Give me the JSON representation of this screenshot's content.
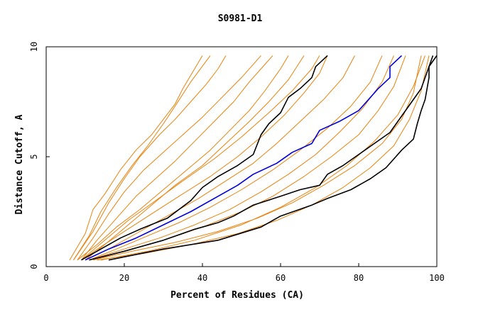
{
  "chart_data": {
    "type": "line",
    "title": "S0981-D1",
    "xlabel": "Percent of Residues (CA)",
    "ylabel": "Distance Cutoff, A",
    "xlim": [
      0,
      100
    ],
    "ylim": [
      0,
      10
    ],
    "x_ticks": [
      "0",
      "20",
      "40",
      "60",
      "80",
      "100"
    ],
    "y_ticks": [
      "0",
      "5",
      "10"
    ],
    "grid": false,
    "colors": {
      "orange": "#e8820c",
      "black": "#000000",
      "blue": "#0000dd"
    },
    "series": [
      {
        "color": "orange",
        "points": [
          [
            6,
            0.3
          ],
          [
            10,
            1.5
          ],
          [
            12,
            2.6
          ],
          [
            15,
            3.3
          ],
          [
            19,
            4.4
          ],
          [
            23,
            5.3
          ],
          [
            27,
            6.0
          ],
          [
            30,
            6.7
          ],
          [
            33,
            7.4
          ],
          [
            35,
            8.1
          ],
          [
            38,
            9.0
          ],
          [
            40,
            9.6
          ]
        ]
      },
      {
        "color": "orange",
        "points": [
          [
            7,
            0.3
          ],
          [
            11,
            1.4
          ],
          [
            14,
            2.5
          ],
          [
            18,
            3.6
          ],
          [
            22,
            4.6
          ],
          [
            26,
            5.5
          ],
          [
            30,
            6.5
          ],
          [
            33,
            7.3
          ],
          [
            37,
            8.4
          ],
          [
            42,
            9.6
          ]
        ]
      },
      {
        "color": "orange",
        "points": [
          [
            8,
            0.3
          ],
          [
            12,
            1.3
          ],
          [
            16,
            2.4
          ],
          [
            20,
            3.4
          ],
          [
            25,
            4.4
          ],
          [
            30,
            5.2
          ],
          [
            35,
            6.0
          ],
          [
            40,
            6.8
          ],
          [
            45,
            7.7
          ],
          [
            50,
            8.6
          ],
          [
            55,
            9.6
          ]
        ]
      },
      {
        "color": "orange",
        "points": [
          [
            9,
            0.3
          ],
          [
            13,
            1.2
          ],
          [
            18,
            2.2
          ],
          [
            23,
            3.2
          ],
          [
            28,
            4.0
          ],
          [
            33,
            4.8
          ],
          [
            38,
            5.7
          ],
          [
            43,
            6.6
          ],
          [
            48,
            7.5
          ],
          [
            52,
            8.4
          ],
          [
            55,
            9.0
          ],
          [
            58,
            9.6
          ]
        ]
      },
      {
        "color": "orange",
        "points": [
          [
            8,
            0.3
          ],
          [
            13,
            1.0
          ],
          [
            18,
            1.8
          ],
          [
            24,
            2.6
          ],
          [
            30,
            3.5
          ],
          [
            36,
            4.4
          ],
          [
            42,
            5.3
          ],
          [
            47,
            6.2
          ],
          [
            52,
            7.1
          ],
          [
            56,
            8.0
          ],
          [
            60,
            9.0
          ],
          [
            62,
            9.6
          ]
        ]
      },
      {
        "color": "orange",
        "points": [
          [
            10,
            0.3
          ],
          [
            15,
            1.0
          ],
          [
            21,
            1.9
          ],
          [
            27,
            2.8
          ],
          [
            33,
            3.7
          ],
          [
            40,
            4.6
          ],
          [
            46,
            5.6
          ],
          [
            52,
            6.6
          ],
          [
            57,
            7.5
          ],
          [
            62,
            8.5
          ],
          [
            66,
            9.6
          ]
        ]
      },
      {
        "color": "orange",
        "points": [
          [
            9,
            0.3
          ],
          [
            14,
            0.9
          ],
          [
            20,
            1.6
          ],
          [
            27,
            2.4
          ],
          [
            34,
            3.2
          ],
          [
            42,
            4.1
          ],
          [
            49,
            5.0
          ],
          [
            55,
            5.9
          ],
          [
            61,
            6.9
          ],
          [
            66,
            7.9
          ],
          [
            70,
            8.8
          ],
          [
            72,
            9.6
          ]
        ]
      },
      {
        "color": "orange",
        "points": [
          [
            10,
            0.3
          ],
          [
            16,
            0.8
          ],
          [
            23,
            1.5
          ],
          [
            31,
            2.3
          ],
          [
            39,
            3.1
          ],
          [
            46,
            3.9
          ],
          [
            53,
            4.7
          ],
          [
            59,
            5.6
          ],
          [
            65,
            6.6
          ],
          [
            71,
            7.6
          ],
          [
            76,
            8.6
          ],
          [
            79,
            9.6
          ]
        ]
      },
      {
        "color": "orange",
        "points": [
          [
            11,
            0.3
          ],
          [
            18,
            0.8
          ],
          [
            26,
            1.4
          ],
          [
            34,
            2.0
          ],
          [
            42,
            2.7
          ],
          [
            50,
            3.5
          ],
          [
            58,
            4.4
          ],
          [
            65,
            5.3
          ],
          [
            72,
            6.3
          ],
          [
            78,
            7.3
          ],
          [
            83,
            8.4
          ],
          [
            86,
            9.6
          ]
        ]
      },
      {
        "color": "orange",
        "points": [
          [
            12,
            0.3
          ],
          [
            20,
            0.7
          ],
          [
            30,
            1.2
          ],
          [
            40,
            1.8
          ],
          [
            50,
            2.5
          ],
          [
            58,
            3.2
          ],
          [
            66,
            4.1
          ],
          [
            73,
            5.0
          ],
          [
            80,
            6.0
          ],
          [
            85,
            7.1
          ],
          [
            89,
            8.2
          ],
          [
            92,
            9.6
          ]
        ]
      },
      {
        "color": "orange",
        "points": [
          [
            12,
            0.3
          ],
          [
            22,
            0.7
          ],
          [
            33,
            1.1
          ],
          [
            44,
            1.6
          ],
          [
            54,
            2.2
          ],
          [
            63,
            2.9
          ],
          [
            71,
            3.7
          ],
          [
            79,
            4.6
          ],
          [
            86,
            5.6
          ],
          [
            91,
            6.7
          ],
          [
            94,
            7.9
          ],
          [
            96,
            9.6
          ]
        ]
      },
      {
        "color": "orange",
        "points": [
          [
            13,
            0.3
          ],
          [
            25,
            0.6
          ],
          [
            37,
            1.0
          ],
          [
            49,
            1.5
          ],
          [
            59,
            2.1
          ],
          [
            68,
            2.8
          ],
          [
            76,
            3.6
          ],
          [
            83,
            4.5
          ],
          [
            89,
            5.5
          ],
          [
            93,
            6.7
          ],
          [
            96,
            8.0
          ],
          [
            98,
            9.6
          ]
        ]
      },
      {
        "color": "orange",
        "points": [
          [
            11,
            0.3
          ],
          [
            20,
            0.8
          ],
          [
            29,
            1.3
          ],
          [
            38,
            1.9
          ],
          [
            47,
            2.6
          ],
          [
            55,
            3.4
          ],
          [
            62,
            4.2
          ],
          [
            69,
            5.1
          ],
          [
            75,
            6.1
          ],
          [
            81,
            7.2
          ],
          [
            86,
            8.4
          ],
          [
            89,
            9.6
          ]
        ]
      },
      {
        "color": "orange",
        "points": [
          [
            7,
            0.3
          ],
          [
            12,
            1.6
          ],
          [
            16,
            2.9
          ],
          [
            20,
            4.0
          ],
          [
            24,
            5.0
          ],
          [
            29,
            6.0
          ],
          [
            33,
            6.7
          ],
          [
            37,
            7.5
          ],
          [
            41,
            8.3
          ],
          [
            44,
            9.0
          ],
          [
            46,
            9.6
          ]
        ]
      },
      {
        "color": "orange",
        "points": [
          [
            14,
            0.3
          ],
          [
            26,
            0.7
          ],
          [
            38,
            1.2
          ],
          [
            50,
            1.9
          ],
          [
            60,
            2.7
          ],
          [
            69,
            3.6
          ],
          [
            77,
            4.6
          ],
          [
            84,
            5.7
          ],
          [
            90,
            6.9
          ],
          [
            94,
            8.2
          ],
          [
            97,
            9.6
          ]
        ]
      },
      {
        "color": "orange",
        "points": [
          [
            9,
            0.3
          ],
          [
            15,
            1.2
          ],
          [
            21,
            2.1
          ],
          [
            28,
            3.0
          ],
          [
            35,
            3.9
          ],
          [
            43,
            4.9
          ],
          [
            50,
            5.9
          ],
          [
            57,
            7.0
          ],
          [
            63,
            8.0
          ],
          [
            68,
            9.0
          ],
          [
            70,
            9.6
          ]
        ]
      },
      {
        "color": "black",
        "points": [
          [
            9,
            0.3
          ],
          [
            14,
            0.8
          ],
          [
            19,
            1.3
          ],
          [
            24,
            1.7
          ],
          [
            31,
            2.2
          ],
          [
            37,
            3.0
          ],
          [
            40,
            3.6
          ],
          [
            44,
            4.1
          ],
          [
            49,
            4.6
          ],
          [
            53,
            5.1
          ],
          [
            55,
            6.0
          ],
          [
            57,
            6.5
          ],
          [
            60,
            7.0
          ],
          [
            62,
            7.7
          ],
          [
            65,
            8.1
          ],
          [
            68,
            8.6
          ],
          [
            69,
            9.1
          ],
          [
            72,
            9.6
          ]
        ]
      },
      {
        "color": "blue",
        "points": [
          [
            10,
            0.3
          ],
          [
            16,
            0.8
          ],
          [
            23,
            1.3
          ],
          [
            30,
            1.9
          ],
          [
            37,
            2.5
          ],
          [
            44,
            3.2
          ],
          [
            49,
            3.7
          ],
          [
            53,
            4.2
          ],
          [
            59,
            4.7
          ],
          [
            63,
            5.2
          ],
          [
            68,
            5.6
          ],
          [
            70,
            6.2
          ],
          [
            75,
            6.6
          ],
          [
            80,
            7.1
          ],
          [
            85,
            8.1
          ],
          [
            88,
            8.6
          ],
          [
            88,
            9.1
          ],
          [
            91,
            9.6
          ]
        ]
      },
      {
        "color": "black",
        "points": [
          [
            11,
            0.3
          ],
          [
            20,
            0.7
          ],
          [
            30,
            1.2
          ],
          [
            38,
            1.7
          ],
          [
            44,
            2.0
          ],
          [
            48,
            2.3
          ],
          [
            53,
            2.8
          ],
          [
            60,
            3.2
          ],
          [
            65,
            3.5
          ],
          [
            70,
            3.7
          ],
          [
            72,
            4.2
          ],
          [
            76,
            4.6
          ],
          [
            80,
            5.1
          ],
          [
            84,
            5.6
          ],
          [
            88,
            6.1
          ],
          [
            90,
            6.6
          ],
          [
            92,
            7.1
          ],
          [
            94,
            7.6
          ],
          [
            96,
            8.1
          ],
          [
            97,
            8.6
          ],
          [
            98,
            9.1
          ],
          [
            99,
            9.6
          ]
        ]
      },
      {
        "color": "black",
        "points": [
          [
            16,
            0.3
          ],
          [
            30,
            0.8
          ],
          [
            44,
            1.2
          ],
          [
            55,
            1.8
          ],
          [
            60,
            2.3
          ],
          [
            68,
            2.8
          ],
          [
            72,
            3.1
          ],
          [
            78,
            3.5
          ],
          [
            83,
            4.0
          ],
          [
            87,
            4.5
          ],
          [
            89,
            4.9
          ],
          [
            91,
            5.3
          ],
          [
            94,
            5.8
          ],
          [
            95,
            6.5
          ],
          [
            96,
            7.1
          ],
          [
            97,
            7.6
          ],
          [
            98,
            8.6
          ],
          [
            98,
            9.1
          ],
          [
            100,
            9.6
          ]
        ]
      }
    ]
  }
}
